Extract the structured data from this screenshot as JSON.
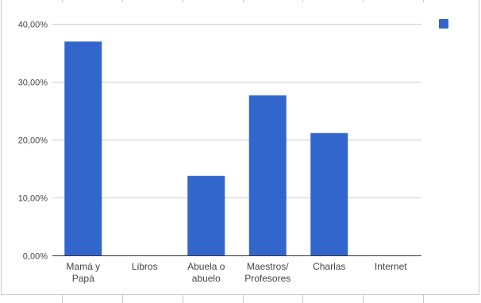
{
  "chart_data": {
    "type": "bar",
    "categories": [
      [
        "Mamá y",
        "Papá"
      ],
      [
        "Libros"
      ],
      [
        "Abuela o",
        "abuelo"
      ],
      [
        "Maestros/",
        "Profesores"
      ],
      [
        "Charlas"
      ],
      [
        "Internet"
      ]
    ],
    "values": [
      37.0,
      0.0,
      13.8,
      27.7,
      21.2,
      0.0
    ],
    "y_ticks": [
      "0,00%",
      "10,00%",
      "20,00%",
      "30,00%",
      "40,00%"
    ],
    "ylim": [
      0,
      40
    ],
    "grid": true,
    "legend": "top-right",
    "color": "#3366cc"
  }
}
